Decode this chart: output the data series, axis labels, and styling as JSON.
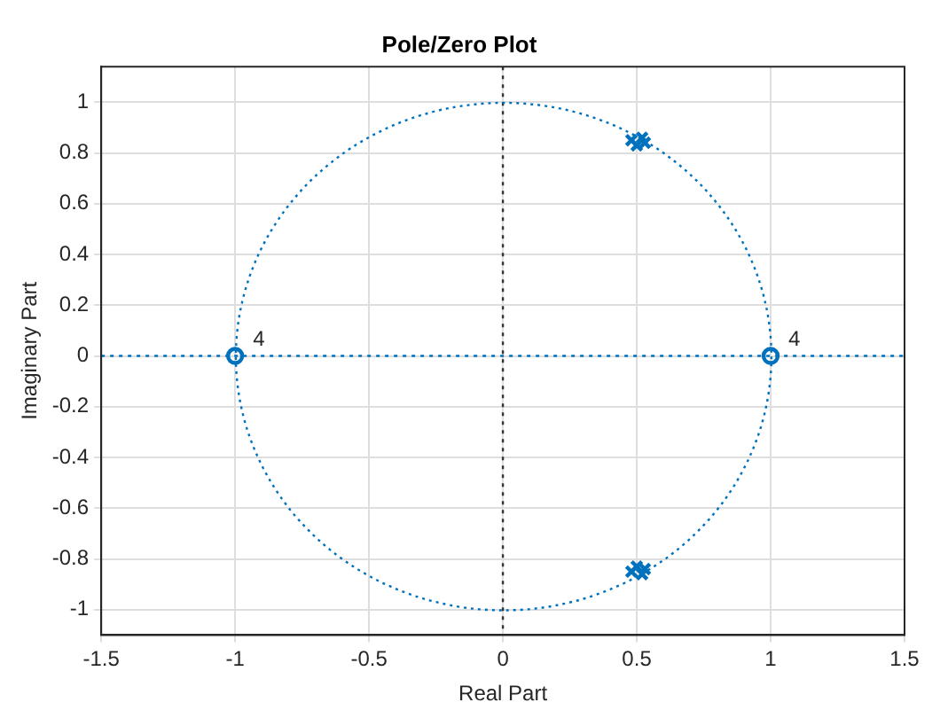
{
  "chart_data": {
    "type": "scatter",
    "title": "Pole/Zero Plot",
    "xlabel": "Real Part",
    "ylabel": "Imaginary Part",
    "xlim": [
      -1.5,
      1.5
    ],
    "xticks": [
      -1.5,
      -1,
      -0.5,
      0,
      0.5,
      1,
      1.5
    ],
    "ylim": [
      -1.1,
      1.14
    ],
    "yticks": [
      -1,
      -0.8,
      -0.6,
      -0.4,
      -0.2,
      0,
      0.2,
      0.4,
      0.6,
      0.8,
      1
    ],
    "grid": true,
    "legend": false,
    "series": [
      {
        "type": "scatter",
        "color": "#0072bd",
        "marker": "circle",
        "x": [
          -1,
          1
        ],
        "values": [
          0,
          0
        ]
      },
      {
        "type": "scatter",
        "color": "#0072bd",
        "marker": "cross",
        "x": [
          0.48,
          0.5,
          0.52,
          0.53,
          0.48,
          0.5,
          0.52,
          0.53
        ],
        "values": [
          0.85,
          0.83,
          0.86,
          0.84,
          -0.85,
          -0.83,
          -0.86,
          -0.84
        ]
      }
    ],
    "ref_lines": [
      {
        "axis": "y",
        "value": 0,
        "color": "#0072bd",
        "line_style": "dotted"
      },
      {
        "axis": "x",
        "value": 0,
        "color": "#333333",
        "line_style": "dotted"
      }
    ],
    "annotations": [
      {
        "text": "4",
        "x": -1,
        "y": 0
      },
      {
        "text": "4",
        "x": 1,
        "y": 0
      }
    ]
  }
}
